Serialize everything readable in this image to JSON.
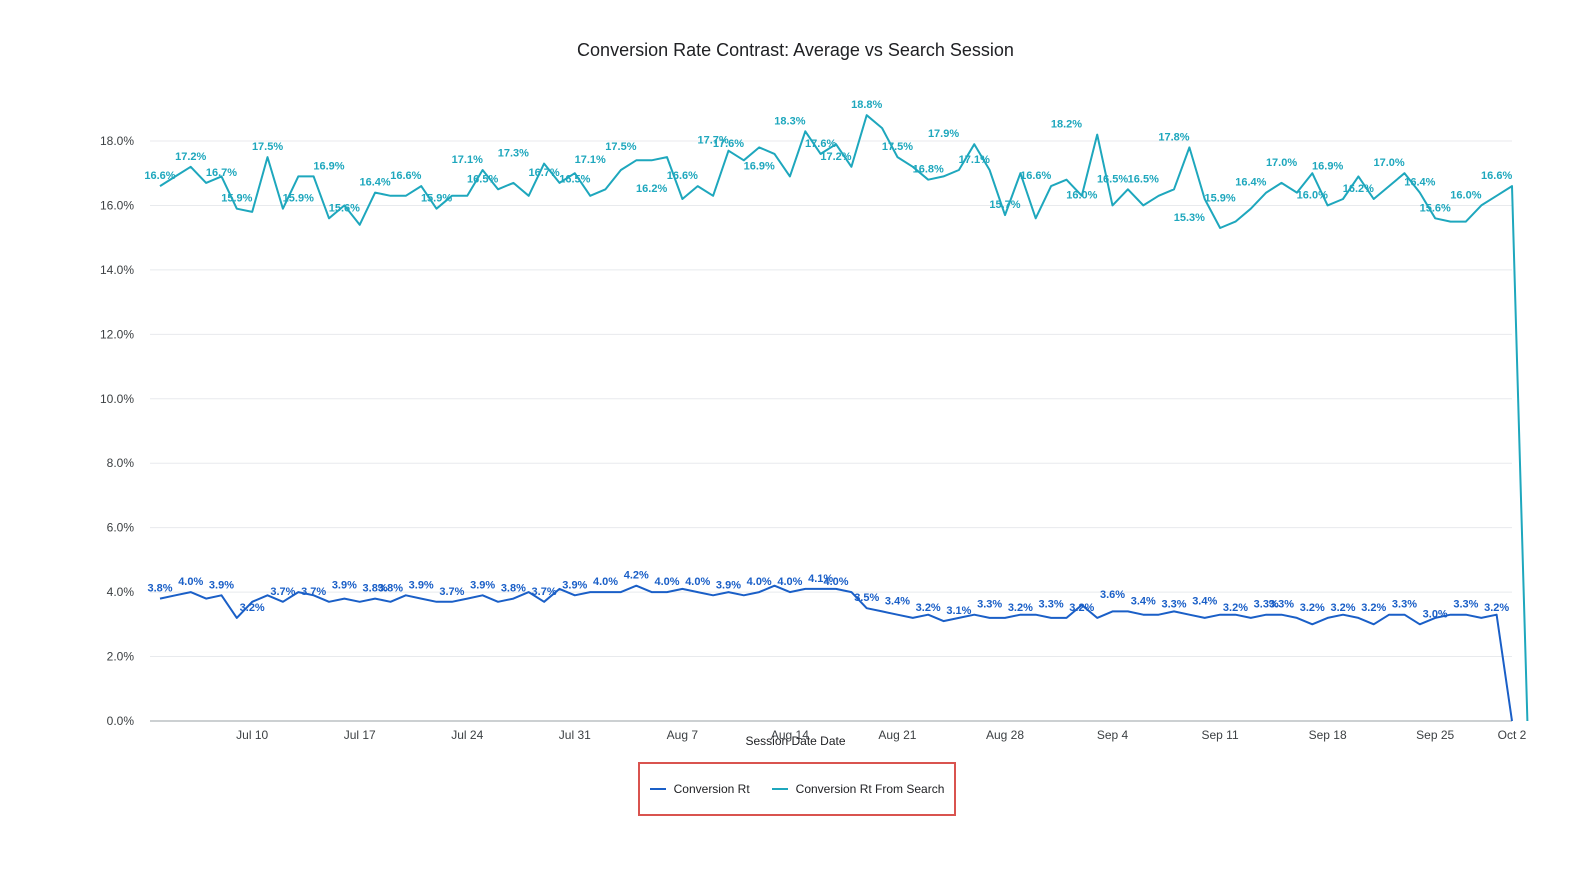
{
  "chart_data": {
    "type": "line",
    "title": "Conversion Rate Contrast: Average vs Search Session",
    "xlabel": "Session Date Date",
    "ylabel": "",
    "ylim": [
      0,
      18
    ],
    "yticks": [
      "0.0%",
      "2.0%",
      "4.0%",
      "6.0%",
      "8.0%",
      "10.0%",
      "12.0%",
      "14.0%",
      "16.0%",
      "18.0%"
    ],
    "xticks": [
      "Jul 10",
      "Jul 17",
      "Jul 24",
      "Jul 31",
      "Aug 7",
      "Aug 14",
      "Aug 21",
      "Aug 28",
      "Sep 4",
      "Sep 11",
      "Sep 18",
      "Sep 25",
      "Oct 2"
    ],
    "x_start": "Jul 4",
    "x_end": "Oct 2",
    "grid": true,
    "legend_position": "bottom",
    "series": [
      {
        "name": "Conversion Rt",
        "color": "#1a5fc7",
        "values": [
          3.8,
          3.9,
          4.0,
          3.8,
          3.9,
          3.2,
          3.7,
          3.9,
          3.7,
          4.0,
          3.9,
          3.7,
          3.8,
          3.7,
          3.8,
          3.7,
          3.9,
          3.8,
          3.7,
          3.7,
          3.8,
          3.9,
          3.7,
          3.8,
          4.0,
          3.7,
          4.1,
          3.9,
          4.0,
          4.0,
          4.0,
          4.2,
          4.0,
          4.0,
          4.1,
          4.0,
          3.9,
          4.0,
          3.9,
          4.0,
          4.2,
          4.0,
          4.1,
          4.1,
          4.1,
          4.0,
          3.5,
          3.4,
          3.3,
          3.2,
          3.3,
          3.1,
          3.2,
          3.3,
          3.2,
          3.2,
          3.3,
          3.3,
          3.2,
          3.2,
          3.6,
          3.2,
          3.4,
          3.4,
          3.3,
          3.3,
          3.4,
          3.3,
          3.2,
          3.3,
          3.3,
          3.2,
          3.3,
          3.3,
          3.2,
          3.0,
          3.2,
          3.3,
          3.2,
          3.0,
          3.3,
          3.3,
          3.0,
          3.2,
          3.3,
          3.3,
          3.2,
          3.3,
          0.0
        ]
      },
      {
        "name": "Conversion Rt From Search",
        "color": "#1ea7bd",
        "values": [
          16.6,
          16.9,
          17.2,
          16.7,
          16.9,
          15.9,
          15.8,
          17.5,
          15.9,
          16.9,
          16.9,
          15.6,
          16.0,
          15.4,
          16.4,
          16.3,
          16.3,
          16.6,
          15.9,
          16.3,
          16.3,
          17.1,
          16.5,
          16.7,
          16.3,
          17.3,
          16.7,
          17.0,
          16.3,
          16.5,
          17.1,
          17.4,
          17.4,
          17.5,
          16.2,
          16.6,
          16.3,
          17.7,
          17.4,
          17.8,
          17.6,
          16.9,
          18.3,
          17.6,
          17.9,
          17.2,
          18.8,
          18.4,
          17.5,
          17.2,
          16.8,
          16.9,
          17.1,
          17.9,
          17.1,
          15.7,
          17.0,
          15.6,
          16.6,
          16.8,
          16.3,
          18.2,
          16.0,
          16.5,
          16.0,
          16.3,
          16.5,
          17.8,
          16.2,
          15.3,
          15.5,
          15.9,
          16.4,
          16.7,
          16.4,
          17.0,
          16.0,
          16.2,
          16.9,
          16.2,
          16.6,
          17.0,
          16.4,
          15.6,
          15.5,
          15.5,
          16.0,
          16.3,
          16.6,
          0.0
        ]
      }
    ],
    "data_labels": [
      [
        "3.8%",
        "4.0%",
        "3.9%",
        "3.2%",
        "3.7%",
        "3.7%",
        "3.9%",
        "3.8%",
        "3.8%",
        "3.9%",
        "3.7%",
        "3.9%",
        "3.8%",
        "3.7%",
        "3.9%",
        "4.0%",
        "4.2%",
        "4.0%",
        "4.0%",
        "3.9%",
        "4.0%",
        "4.0%",
        "4.1%",
        "4.0%",
        "3.5%",
        "3.4%",
        "3.2%",
        "3.1%",
        "3.3%",
        "3.2%",
        "3.3%",
        "3.2%",
        "3.6%",
        "3.4%",
        "3.3%",
        "3.4%",
        "3.2%",
        "3.3%",
        "3.3%",
        "3.2%",
        "3.2%",
        "3.2%",
        "3.3%",
        "3.0%",
        "3.3%",
        "3.2%"
      ],
      [
        "16.6%",
        "17.2%",
        "16.7%",
        "15.9%",
        "17.5%",
        "15.9%",
        "16.9%",
        "15.6%",
        "16.4%",
        "16.6%",
        "15.9%",
        "17.1%",
        "16.5%",
        "17.3%",
        "16.7%",
        "16.5%",
        "17.1%",
        "17.5%",
        "16.2%",
        "16.6%",
        "17.7%",
        "17.6%",
        "16.9%",
        "18.3%",
        "17.6%",
        "17.2%",
        "18.8%",
        "17.5%",
        "16.8%",
        "17.9%",
        "17.1%",
        "15.7%",
        "16.6%",
        "18.2%",
        "16.0%",
        "16.5%",
        "16.5%",
        "17.8%",
        "15.3%",
        "15.9%",
        "16.4%",
        "17.0%",
        "16.0%",
        "16.9%",
        "16.2%",
        "17.0%",
        "16.4%",
        "15.6%",
        "16.0%",
        "16.6%"
      ]
    ]
  }
}
